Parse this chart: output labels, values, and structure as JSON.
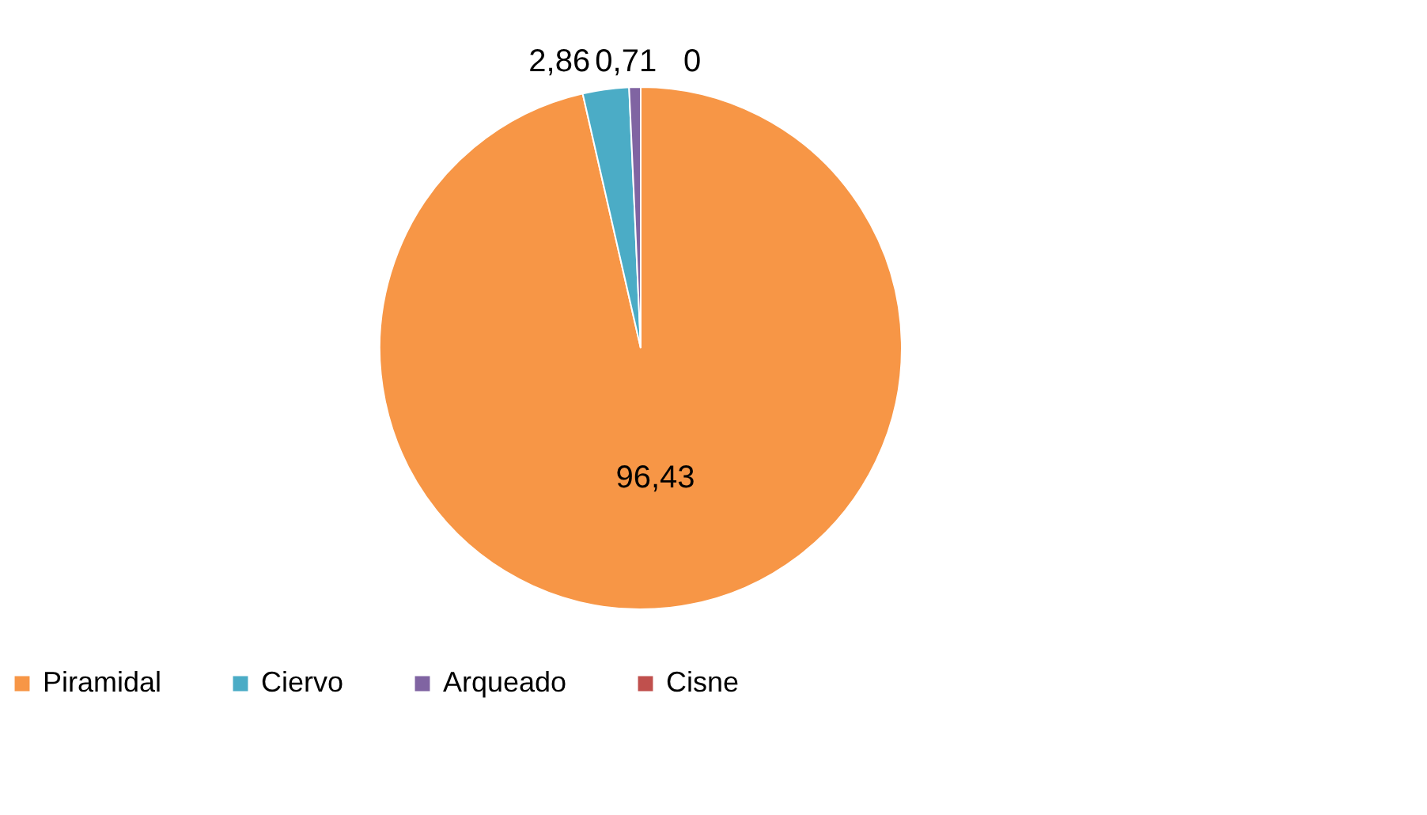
{
  "chart_data": {
    "type": "pie",
    "categories": [
      "Piramidal",
      "Ciervo",
      "Arqueado",
      "Cisne"
    ],
    "values": [
      96.43,
      2.86,
      0.71,
      0
    ],
    "colors": [
      "#f79646",
      "#4bacc6",
      "#8064a2",
      "#c0504d"
    ],
    "value_labels": [
      "96,43",
      "2,86",
      "0,71",
      "0"
    ],
    "legend": "bottom"
  }
}
